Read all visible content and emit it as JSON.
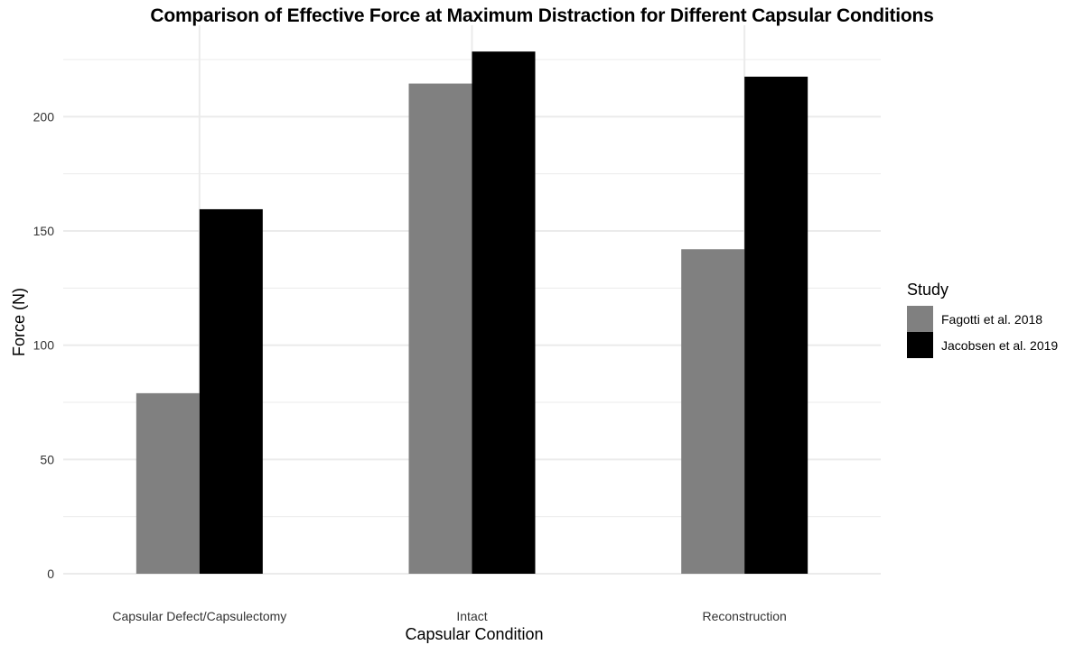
{
  "chart_data": {
    "type": "bar",
    "title": "Comparison of Effective Force at Maximum Distraction for Different Capsular Conditions",
    "xlabel": "Capsular Condition",
    "ylabel": "Force (N)",
    "categories": [
      "Capsular Defect/Capsulectomy",
      "Intact",
      "Reconstruction"
    ],
    "series": [
      {
        "name": "Fagotti et al. 2018",
        "color": "#808080",
        "values": [
          79,
          214.5,
          142
        ]
      },
      {
        "name": "Jacobsen et al. 2019",
        "color": "#000000",
        "values": [
          159.5,
          228.5,
          217.5
        ]
      }
    ],
    "ylim": [
      0,
      240
    ],
    "yticks": [
      0,
      50,
      100,
      150,
      200
    ],
    "grid": true,
    "legend": {
      "title": "Study",
      "placement": "right"
    },
    "gridline_color": "#ebebeb"
  }
}
